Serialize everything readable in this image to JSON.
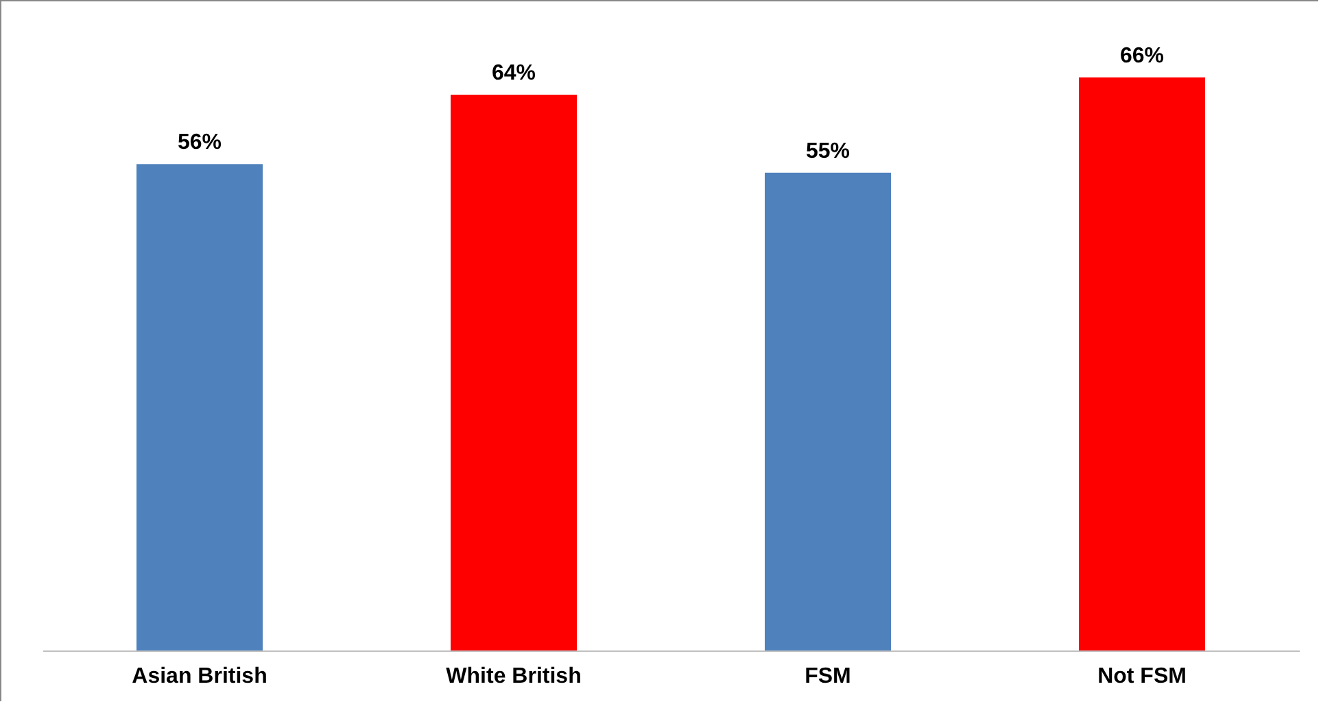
{
  "chart_data": {
    "type": "bar",
    "categories": [
      "Asian British",
      "White British",
      "FSM",
      "Not FSM"
    ],
    "values": [
      56,
      64,
      55,
      66
    ],
    "colors": [
      "#4f81bd",
      "#ff0000",
      "#4f81bd",
      "#ff0000"
    ],
    "value_labels": [
      "56%",
      "64%",
      "55%",
      "66%"
    ],
    "grid": false,
    "legend": false
  }
}
